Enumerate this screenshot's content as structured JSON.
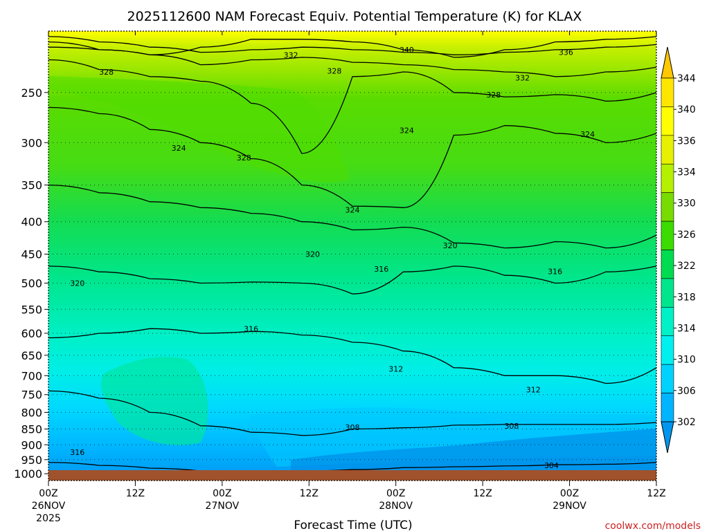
{
  "chart_data": {
    "type": "heatmap",
    "title": "2025112600 NAM Forecast Equiv. Potential Temperature (K) for KLAX",
    "xlabel": "Forecast Time (UTC)",
    "ylabel": "",
    "x_ticks": [
      {
        "hour": 0,
        "lines": [
          "00Z",
          "26NOV",
          "2025"
        ]
      },
      {
        "hour": 12,
        "lines": [
          "12Z"
        ]
      },
      {
        "hour": 24,
        "lines": [
          "00Z",
          "27NOV"
        ]
      },
      {
        "hour": 36,
        "lines": [
          "12Z"
        ]
      },
      {
        "hour": 48,
        "lines": [
          "00Z",
          "28NOV"
        ]
      },
      {
        "hour": 60,
        "lines": [
          "12Z"
        ]
      },
      {
        "hour": 72,
        "lines": [
          "00Z",
          "29NOV"
        ]
      },
      {
        "hour": 84,
        "lines": [
          "12Z"
        ]
      }
    ],
    "xlim": [
      0,
      84
    ],
    "y_ticks": [
      "250",
      "300",
      "350",
      "400",
      "450",
      "500",
      "550",
      "600",
      "650",
      "700",
      "750",
      "800",
      "850",
      "900",
      "950",
      "1000"
    ],
    "y_tick_values": [
      250,
      300,
      350,
      400,
      450,
      500,
      550,
      600,
      650,
      700,
      750,
      800,
      850,
      900,
      950,
      1000
    ],
    "ylim": [
      200,
      1025
    ],
    "y_scale": "log-pressure (inverted)",
    "grid": "dotted at pressure levels",
    "colorbar": {
      "ticks": [
        "302",
        "306",
        "310",
        "314",
        "318",
        "322",
        "326",
        "330",
        "334",
        "336",
        "340",
        "344"
      ],
      "colors": [
        "#0096f0",
        "#00b4ff",
        "#00d2ff",
        "#00f0f0",
        "#00f0c8",
        "#00e68c",
        "#00dc50",
        "#3cdc00",
        "#78dc00",
        "#b4f000",
        "#e6f000",
        "#ffff00",
        "#ffe600",
        "#ffc800"
      ]
    },
    "contour_interval": 4,
    "contour_levels": [
      304,
      308,
      312,
      316,
      320,
      324,
      328,
      332,
      336,
      340
    ],
    "contour_labels": [
      {
        "text": "340",
        "hour": 49.5,
        "p": 214
      },
      {
        "text": "336",
        "hour": 71.5,
        "p": 216
      },
      {
        "text": "332",
        "hour": 33.5,
        "p": 218
      },
      {
        "text": "332",
        "hour": 65.5,
        "p": 237
      },
      {
        "text": "328",
        "hour": 8,
        "p": 232
      },
      {
        "text": "328",
        "hour": 39.5,
        "p": 231
      },
      {
        "text": "328",
        "hour": 61.5,
        "p": 252
      },
      {
        "text": "328",
        "hour": 27,
        "p": 317
      },
      {
        "text": "324",
        "hour": 18,
        "p": 306
      },
      {
        "text": "324",
        "hour": 49.5,
        "p": 287
      },
      {
        "text": "324",
        "hour": 74.5,
        "p": 291
      },
      {
        "text": "324",
        "hour": 42,
        "p": 383
      },
      {
        "text": "320",
        "hour": 55.5,
        "p": 436
      },
      {
        "text": "320",
        "hour": 36.5,
        "p": 450
      },
      {
        "text": "320",
        "hour": 4,
        "p": 500
      },
      {
        "text": "316",
        "hour": 46,
        "p": 475
      },
      {
        "text": "316",
        "hour": 70,
        "p": 479
      },
      {
        "text": "316",
        "hour": 28,
        "p": 590
      },
      {
        "text": "316",
        "hour": 4,
        "p": 925
      },
      {
        "text": "312",
        "hour": 48,
        "p": 683
      },
      {
        "text": "312",
        "hour": 67,
        "p": 736
      },
      {
        "text": "308",
        "hour": 42,
        "p": 845
      },
      {
        "text": "308",
        "hour": 64,
        "p": 840
      },
      {
        "text": "304",
        "hour": 69.5,
        "p": 970
      }
    ],
    "surface_color": "#a0522d"
  },
  "credit": "coolwx.com/models"
}
